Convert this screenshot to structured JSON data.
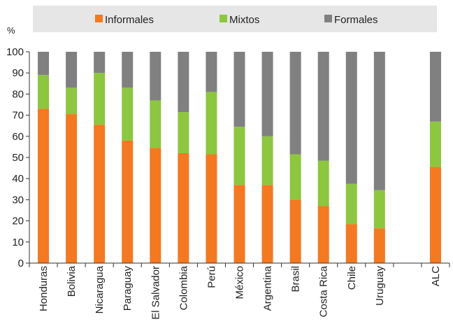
{
  "chart_data": {
    "type": "bar",
    "stacked": true,
    "categories": [
      "Honduras",
      "Bolivia",
      "Nicaragua",
      "Paraguay",
      "El Salvador",
      "Colombia",
      "Perú",
      "México",
      "Argentina",
      "Brasil",
      "Costa Rica",
      "Chile",
      "Uruguay",
      "",
      "ALC"
    ],
    "series": [
      {
        "name": "Informales",
        "color": "#f47920",
        "values": [
          73,
          70.5,
          65.5,
          58,
          54.5,
          52,
          51.5,
          37,
          37,
          30,
          27,
          18.5,
          16.5,
          null,
          45.5
        ]
      },
      {
        "name": "Mixtos",
        "color": "#8dc63f",
        "values": [
          16,
          12.5,
          24.5,
          25,
          22.5,
          19.5,
          29.5,
          27.5,
          23,
          21.5,
          21.5,
          19,
          18,
          null,
          21.5
        ]
      },
      {
        "name": "Formales",
        "color": "#808080",
        "values": [
          11,
          17,
          10,
          17,
          23,
          28.5,
          19,
          35.5,
          40,
          48.5,
          51.5,
          62.5,
          65.5,
          null,
          33
        ]
      }
    ],
    "ylabel": "%",
    "ylim": [
      0,
      100
    ],
    "yticks": [
      0,
      10,
      20,
      30,
      40,
      50,
      60,
      70,
      80,
      90,
      100
    ],
    "legend_position": "top",
    "grid": false
  }
}
